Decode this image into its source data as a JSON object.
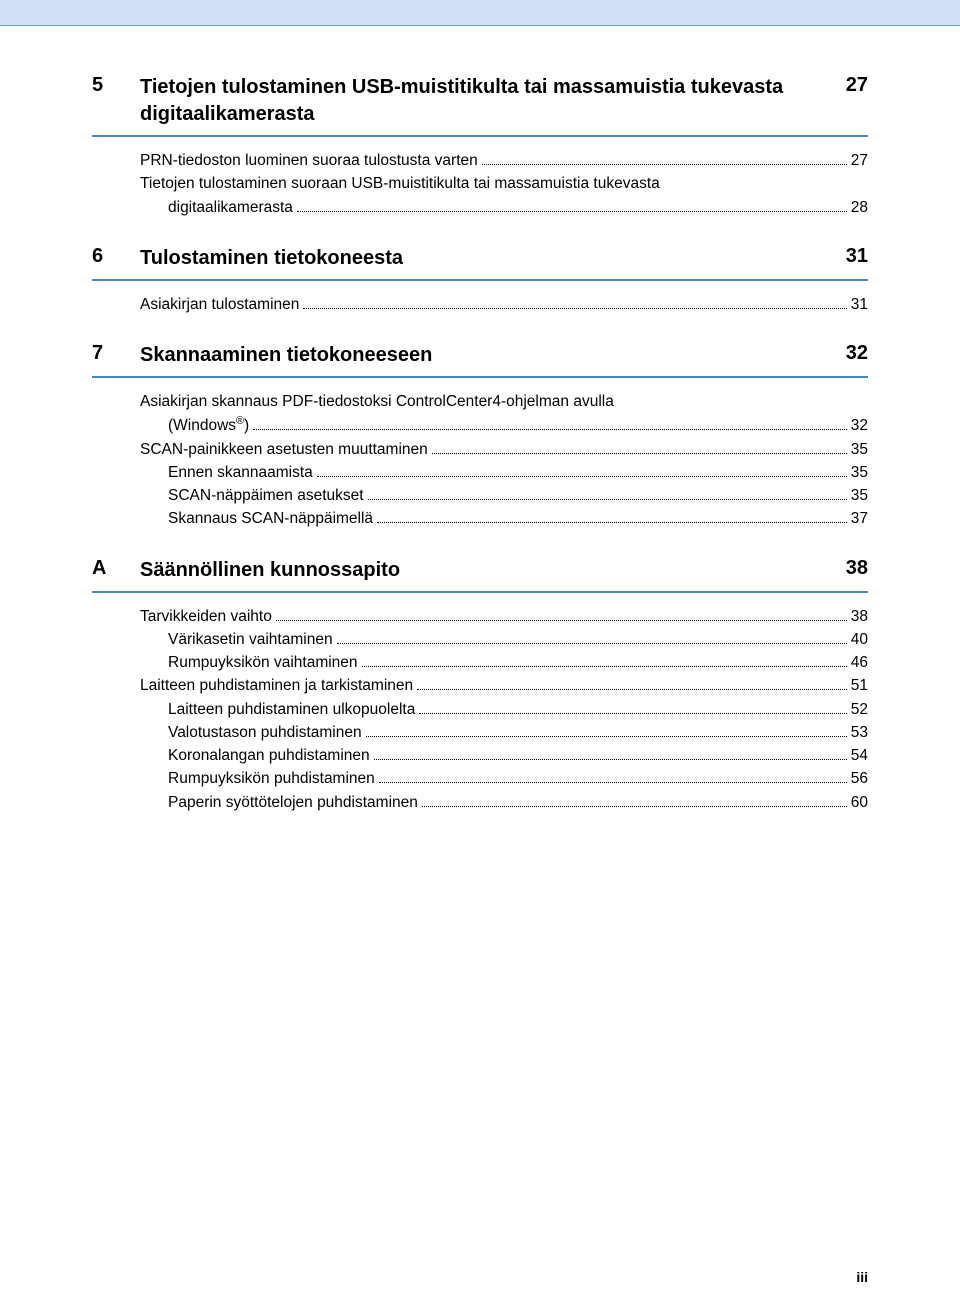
{
  "topbar_color": "#d0e0f4",
  "underline_color": "#4a84c4",
  "sections": {
    "s5": {
      "num": "5",
      "title": "Tietojen tulostaminen USB-muistitikulta tai massamuistia tukevasta digitaalikamerasta",
      "page": "27",
      "entries": {
        "e0": {
          "label": "PRN-tiedoston luominen suoraa tulostusta varten",
          "page": "27",
          "indent": 0
        },
        "e1_l1": "Tietojen tulostaminen suoraan USB-muistitikulta tai massamuistia tukevasta",
        "e1_l2": "digitaalikamerasta",
        "e1_page": "28"
      }
    },
    "s6": {
      "num": "6",
      "title": "Tulostaminen tietokoneesta",
      "page": "31",
      "entries": {
        "e0": {
          "label": "Asiakirjan tulostaminen",
          "page": "31",
          "indent": 0
        }
      }
    },
    "s7": {
      "num": "7",
      "title": "Skannaaminen tietokoneeseen",
      "page": "32",
      "entries": {
        "e0_l1": "Asiakirjan skannaus PDF-tiedostoksi ControlCenter4-ohjelman avulla",
        "e0_l2_pre": "(Windows",
        "e0_l2_post": ")",
        "e0_page": "32",
        "e1": {
          "label": "SCAN-painikkeen asetusten muuttaminen",
          "page": "35",
          "indent": 0
        },
        "e2": {
          "label": "Ennen skannaamista",
          "page": "35",
          "indent": 1
        },
        "e3": {
          "label": "SCAN-näppäimen asetukset",
          "page": "35",
          "indent": 1
        },
        "e4": {
          "label": "Skannaus SCAN-näppäimellä",
          "page": "37",
          "indent": 1
        }
      }
    },
    "sA": {
      "num": "A",
      "title": "Säännöllinen kunnossapito",
      "page": "38",
      "entries": {
        "e0": {
          "label": "Tarvikkeiden vaihto",
          "page": "38",
          "indent": 0
        },
        "e1": {
          "label": "Värikasetin vaihtaminen",
          "page": "40",
          "indent": 1
        },
        "e2": {
          "label": "Rumpuyksikön vaihtaminen",
          "page": "46",
          "indent": 1
        },
        "e3": {
          "label": "Laitteen puhdistaminen ja tarkistaminen",
          "page": "51",
          "indent": 0
        },
        "e4": {
          "label": "Laitteen puhdistaminen ulkopuolelta",
          "page": "52",
          "indent": 1
        },
        "e5": {
          "label": "Valotustason puhdistaminen",
          "page": "53",
          "indent": 1
        },
        "e6": {
          "label": "Koronalangan puhdistaminen",
          "page": "54",
          "indent": 1
        },
        "e7": {
          "label": "Rumpuyksikön puhdistaminen",
          "page": "56",
          "indent": 1
        },
        "e8": {
          "label": "Paperin syöttötelojen puhdistaminen",
          "page": "60",
          "indent": 1
        }
      }
    }
  },
  "footer": "iii"
}
